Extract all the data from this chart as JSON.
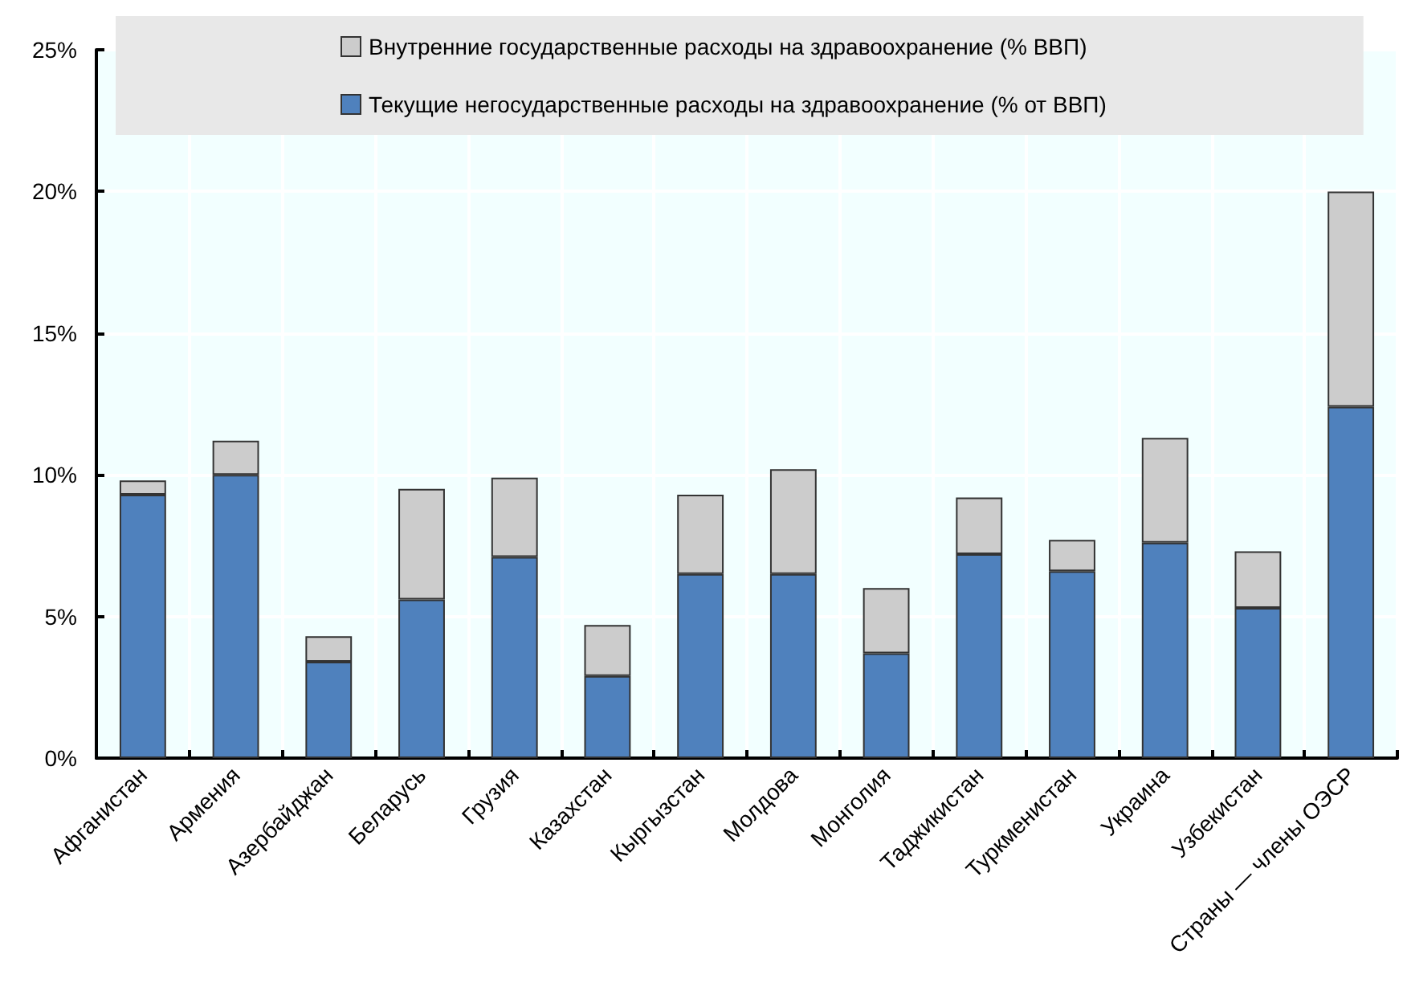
{
  "chart_data": {
    "type": "bar",
    "stacked": true,
    "categories": [
      "Афганистан",
      "Армения",
      "Азербайджан",
      "Беларусь",
      "Грузия",
      "Казахстан",
      "Кыргызстан",
      "Молдова",
      "Монголия",
      "Таджикистан",
      "Туркменистан",
      "Украина",
      "Узбекистан",
      "Страны — члены ОЭСР"
    ],
    "series": [
      {
        "name": "Текущие негосударственные расходы на здравоохранение (% от ВВП)",
        "color": "#4f81bd",
        "values": [
          9.3,
          10.0,
          3.4,
          5.6,
          7.1,
          2.9,
          6.5,
          6.5,
          3.7,
          7.2,
          6.6,
          7.6,
          5.3,
          12.4
        ]
      },
      {
        "name": "Внутренние государственные расходы на здравоохранение (% ВВП)",
        "color": "#cccccc",
        "values": [
          0.5,
          1.2,
          0.9,
          3.9,
          2.8,
          1.8,
          2.8,
          3.7,
          2.3,
          2.0,
          1.1,
          3.7,
          2.0,
          7.6
        ]
      }
    ],
    "ylim": [
      0,
      25
    ],
    "yticks": [
      {
        "value": 0,
        "label": "0%"
      },
      {
        "value": 5,
        "label": "5%"
      },
      {
        "value": 10,
        "label": "10%"
      },
      {
        "value": 15,
        "label": "15%"
      },
      {
        "value": 20,
        "label": "20%"
      },
      {
        "value": 25,
        "label": "25%"
      }
    ],
    "grid": true,
    "legend": "top"
  }
}
